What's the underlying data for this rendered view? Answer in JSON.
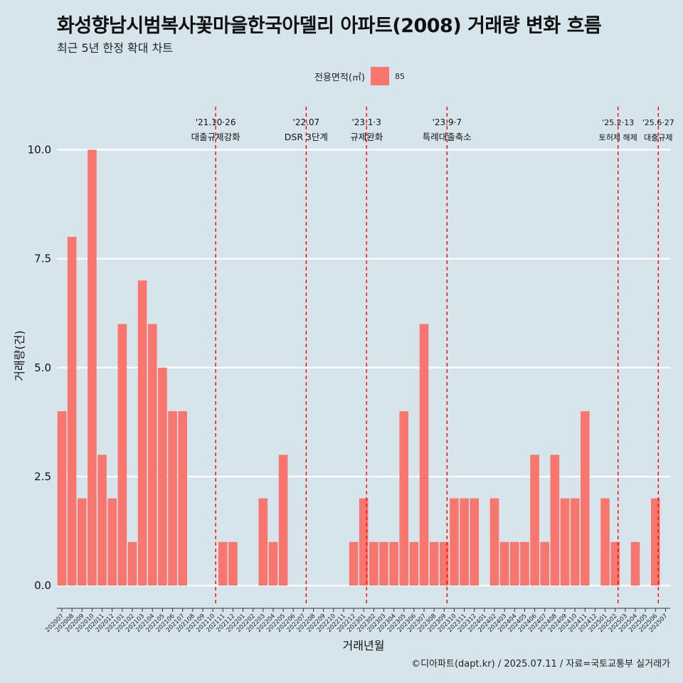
{
  "title": "화성향남시범복사꽃마을한국아델리 아파트(2008) 거래량 변화 흐름",
  "subtitle": "최근 5년 한정 확대 차트",
  "legend": {
    "title": "전용면적(㎡)",
    "item": "85",
    "color": "#f8766d"
  },
  "caption": "©디아파트(dapt.kr) / 2025.07.11 / 자료=국토교통부 실거래가",
  "chart_data": {
    "type": "bar",
    "xlabel": "거래년월",
    "ylabel": "거래량(건)",
    "ylim": [
      0,
      10
    ],
    "yticks": [
      "0.0",
      "2.5",
      "5.0",
      "7.5",
      "10.0"
    ],
    "ytick_values": [
      0,
      2.5,
      5,
      7.5,
      10
    ],
    "grid": true,
    "legend_position": "top",
    "categories": [
      "202007",
      "202008",
      "202009",
      "202010",
      "202011",
      "202012",
      "202101",
      "202102",
      "202103",
      "202104",
      "202105",
      "202106",
      "202107",
      "202108",
      "202109",
      "202110",
      "202111",
      "202112",
      "202201",
      "202202",
      "202203",
      "202204",
      "202205",
      "202206",
      "202207",
      "202208",
      "202209",
      "202210",
      "202211",
      "202212",
      "202301",
      "202302",
      "202303",
      "202304",
      "202305",
      "202306",
      "202307",
      "202308",
      "202309",
      "202310",
      "202311",
      "202312",
      "202401",
      "202402",
      "202403",
      "202404",
      "202405",
      "202406",
      "202407",
      "202408",
      "202409",
      "202410",
      "202411",
      "202412",
      "202501",
      "202502",
      "202503",
      "202504",
      "202505",
      "202506",
      "202507"
    ],
    "series": [
      {
        "name": "85",
        "values": [
          4,
          8,
          2,
          10,
          3,
          2,
          6,
          1,
          7,
          6,
          5,
          4,
          4,
          0,
          0,
          0,
          1,
          1,
          0,
          0,
          2,
          1,
          3,
          0,
          0,
          0,
          0,
          0,
          0,
          1,
          2,
          1,
          1,
          1,
          4,
          1,
          6,
          1,
          1,
          2,
          2,
          2,
          0,
          2,
          1,
          1,
          1,
          3,
          1,
          3,
          2,
          2,
          4,
          0,
          2,
          1,
          0,
          1,
          0,
          2,
          0
        ]
      }
    ],
    "annotations": [
      {
        "x": "202110",
        "date": "'21.10·26",
        "label": "대출규제강화"
      },
      {
        "x": "202207",
        "date": "'22.07",
        "label": "DSR 3단계"
      },
      {
        "x": "202301",
        "date": "'23.1·3",
        "label": "규제완화"
      },
      {
        "x": "202309",
        "date": "'23.9·7",
        "label": "특례대출축소"
      },
      {
        "x": "202502",
        "date": "'25.2·13",
        "label": "토허제 해제"
      },
      {
        "x": "202506",
        "date": "'25.6·27",
        "label": "대출규제"
      }
    ]
  }
}
